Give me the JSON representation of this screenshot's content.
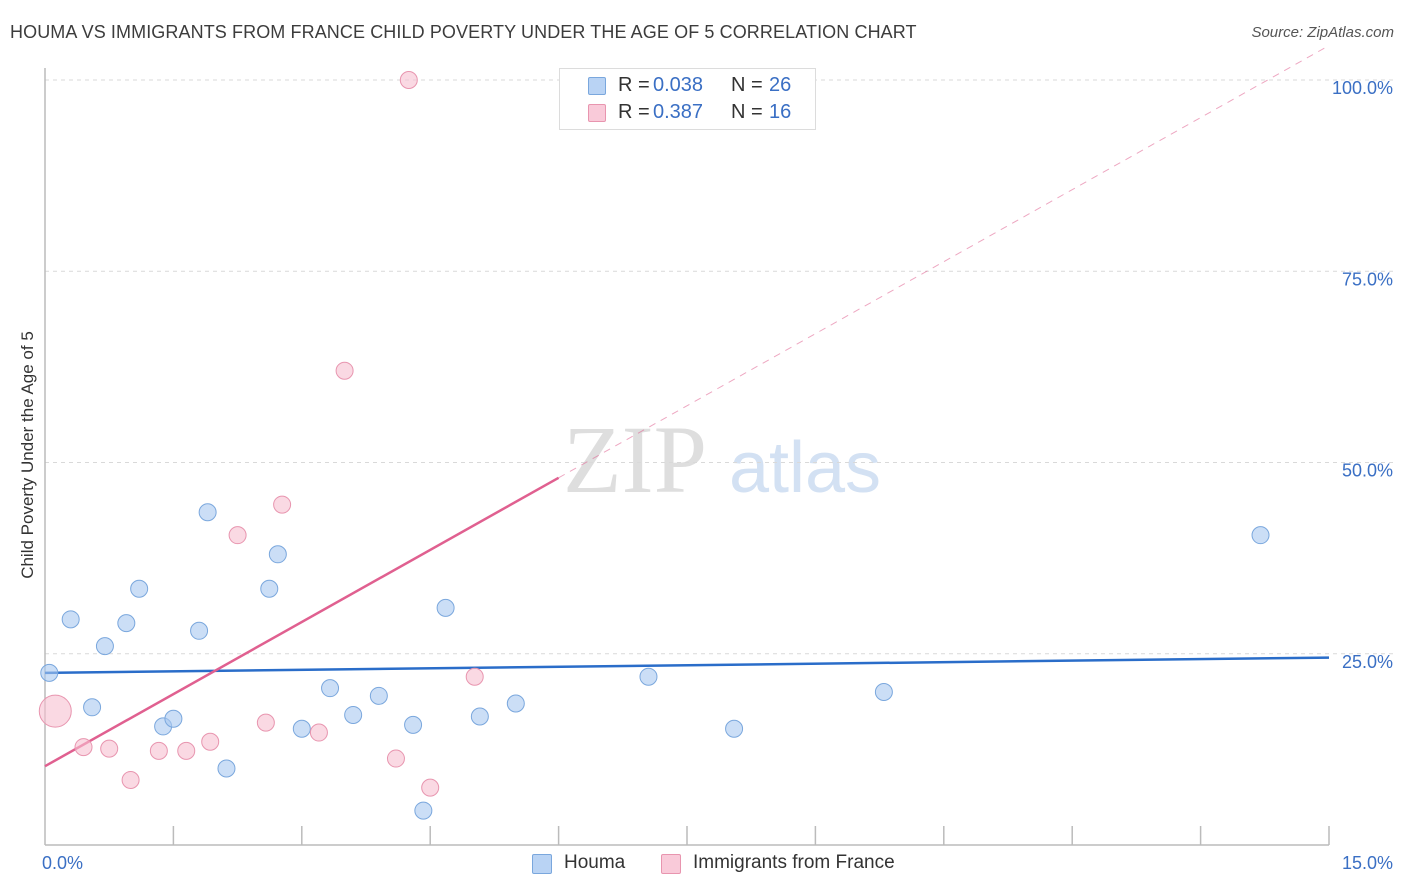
{
  "chart_data": {
    "type": "scatter",
    "title": "HOUMA VS IMMIGRANTS FROM FRANCE CHILD POVERTY UNDER THE AGE OF 5 CORRELATION CHART",
    "source": "Source: ZipAtlas.com",
    "xlabel": "",
    "ylabel": "Child Poverty Under the Age of 5",
    "xlim": [
      0,
      15
    ],
    "ylim": [
      0,
      100
    ],
    "x_tick_labels": [
      "0.0%",
      "15.0%"
    ],
    "y_ticks": [
      25,
      50,
      75,
      100
    ],
    "y_tick_labels": [
      "25.0%",
      "50.0%",
      "75.0%",
      "100.0%"
    ],
    "watermark": {
      "part1": "ZIP",
      "part2": "atlas"
    },
    "legend_top": [
      {
        "r_label": "R = ",
        "r_value": "0.038",
        "n_label": "N = ",
        "n_value": "26"
      },
      {
        "r_label": "R = ",
        "r_value": "0.387",
        "n_label": "N = ",
        "n_value": "16"
      }
    ],
    "series": [
      {
        "name": "Houma",
        "color": "#a9c8f0",
        "stroke": "#7aa7dd",
        "trend_color": "#2a6dc9",
        "trend": {
          "x0": 0,
          "y0": 22.5,
          "x1": 15,
          "y1": 24.5
        },
        "points": [
          {
            "x": 0.05,
            "y": 22.5
          },
          {
            "x": 0.3,
            "y": 29.5
          },
          {
            "x": 0.55,
            "y": 18
          },
          {
            "x": 0.7,
            "y": 26
          },
          {
            "x": 0.95,
            "y": 29
          },
          {
            "x": 1.1,
            "y": 33.5
          },
          {
            "x": 1.38,
            "y": 15.5
          },
          {
            "x": 1.5,
            "y": 16.5
          },
          {
            "x": 1.8,
            "y": 28
          },
          {
            "x": 1.9,
            "y": 43.5
          },
          {
            "x": 2.12,
            "y": 10
          },
          {
            "x": 2.62,
            "y": 33.5
          },
          {
            "x": 2.72,
            "y": 38
          },
          {
            "x": 3.0,
            "y": 15.2
          },
          {
            "x": 3.33,
            "y": 20.5
          },
          {
            "x": 3.6,
            "y": 17
          },
          {
            "x": 3.9,
            "y": 19.5
          },
          {
            "x": 4.3,
            "y": 15.7
          },
          {
            "x": 4.42,
            "y": 4.5
          },
          {
            "x": 4.68,
            "y": 31
          },
          {
            "x": 5.08,
            "y": 16.8
          },
          {
            "x": 5.5,
            "y": 18.5
          },
          {
            "x": 7.05,
            "y": 22
          },
          {
            "x": 8.05,
            "y": 15.2
          },
          {
            "x": 9.8,
            "y": 20
          },
          {
            "x": 14.2,
            "y": 40.5
          }
        ]
      },
      {
        "name": "Immigrants from France",
        "color": "#f7bfd0",
        "stroke": "#e895af",
        "trend_color": "#e06090",
        "trend": {
          "x0": 0,
          "y0": 10.3,
          "x1": 6.0,
          "y1": 48.0
        },
        "trend_extension": {
          "x0": 6.0,
          "y0": 48.0,
          "x1": 15,
          "y1": 104.5
        },
        "points": [
          {
            "x": 0.12,
            "y": 17.5,
            "big": true
          },
          {
            "x": 0.45,
            "y": 12.8
          },
          {
            "x": 0.75,
            "y": 12.6
          },
          {
            "x": 1.0,
            "y": 8.5
          },
          {
            "x": 1.33,
            "y": 12.3
          },
          {
            "x": 1.65,
            "y": 12.3
          },
          {
            "x": 1.93,
            "y": 13.5
          },
          {
            "x": 2.25,
            "y": 40.5
          },
          {
            "x": 2.58,
            "y": 16
          },
          {
            "x": 2.77,
            "y": 44.5
          },
          {
            "x": 3.2,
            "y": 14.7
          },
          {
            "x": 3.5,
            "y": 62
          },
          {
            "x": 4.1,
            "y": 11.3
          },
          {
            "x": 4.25,
            "y": 100
          },
          {
            "x": 4.5,
            "y": 7.5
          },
          {
            "x": 5.02,
            "y": 22
          }
        ]
      }
    ]
  }
}
